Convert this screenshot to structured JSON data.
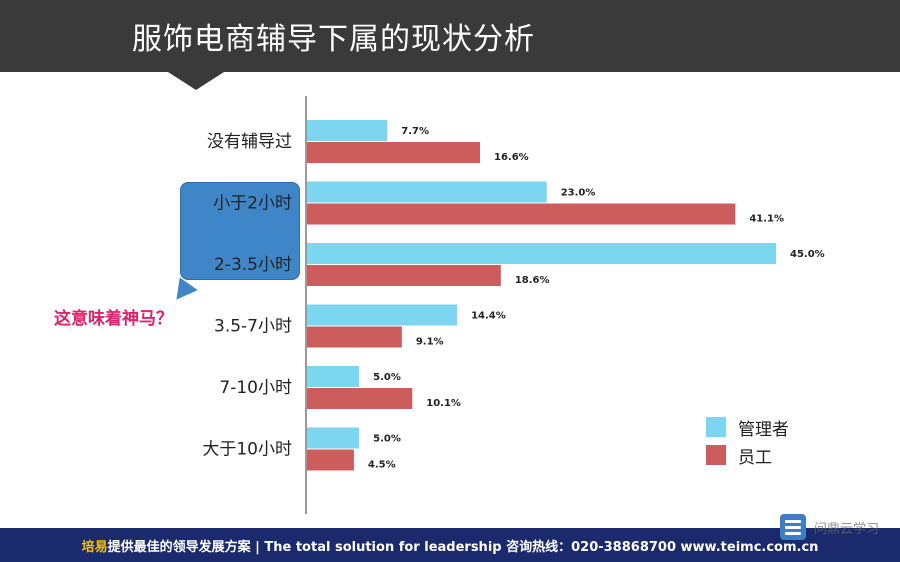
{
  "header": {
    "title": "服饰电商辅导下属的现状分析"
  },
  "callout": {
    "question": "这意味着神马？"
  },
  "colors": {
    "manager": "#7dd6f0",
    "employee": "#cd5c5c",
    "header_bg": "#3a3a3a",
    "footer_bg": "#1a2a6c"
  },
  "chart_data": {
    "type": "bar",
    "orientation": "horizontal",
    "categories": [
      "没有辅导过",
      "小于2小时",
      "2-3.5小时",
      "3.5-7小时",
      "7-10小时",
      "大于10小时"
    ],
    "series": [
      {
        "name": "管理者",
        "values": [
          7.7,
          23.0,
          45.0,
          14.4,
          5.0,
          5.0
        ],
        "labels": [
          "7.7%",
          "23.0%",
          "45.0%",
          "14.4%",
          "5.0%",
          "5.0%"
        ]
      },
      {
        "name": "员工",
        "values": [
          16.6,
          41.1,
          18.6,
          9.1,
          10.1,
          4.5
        ],
        "labels": [
          "16.6%",
          "41.1%",
          "18.6%",
          "9.1%",
          "10.1%",
          "4.5%"
        ]
      }
    ],
    "xlim": [
      0,
      45
    ],
    "legend": "bottom-right",
    "grid": false
  },
  "legend": {
    "items": [
      "管理者",
      "员工"
    ]
  },
  "footer": {
    "brand": "培易",
    "text": "提供最佳的领导发展方案 | The total solution for leadership  咨询热线：020-38868700 www.teimc.com.cn"
  },
  "watermark": {
    "text": "问鼎云学习",
    "icon": "document-stack-icon"
  }
}
